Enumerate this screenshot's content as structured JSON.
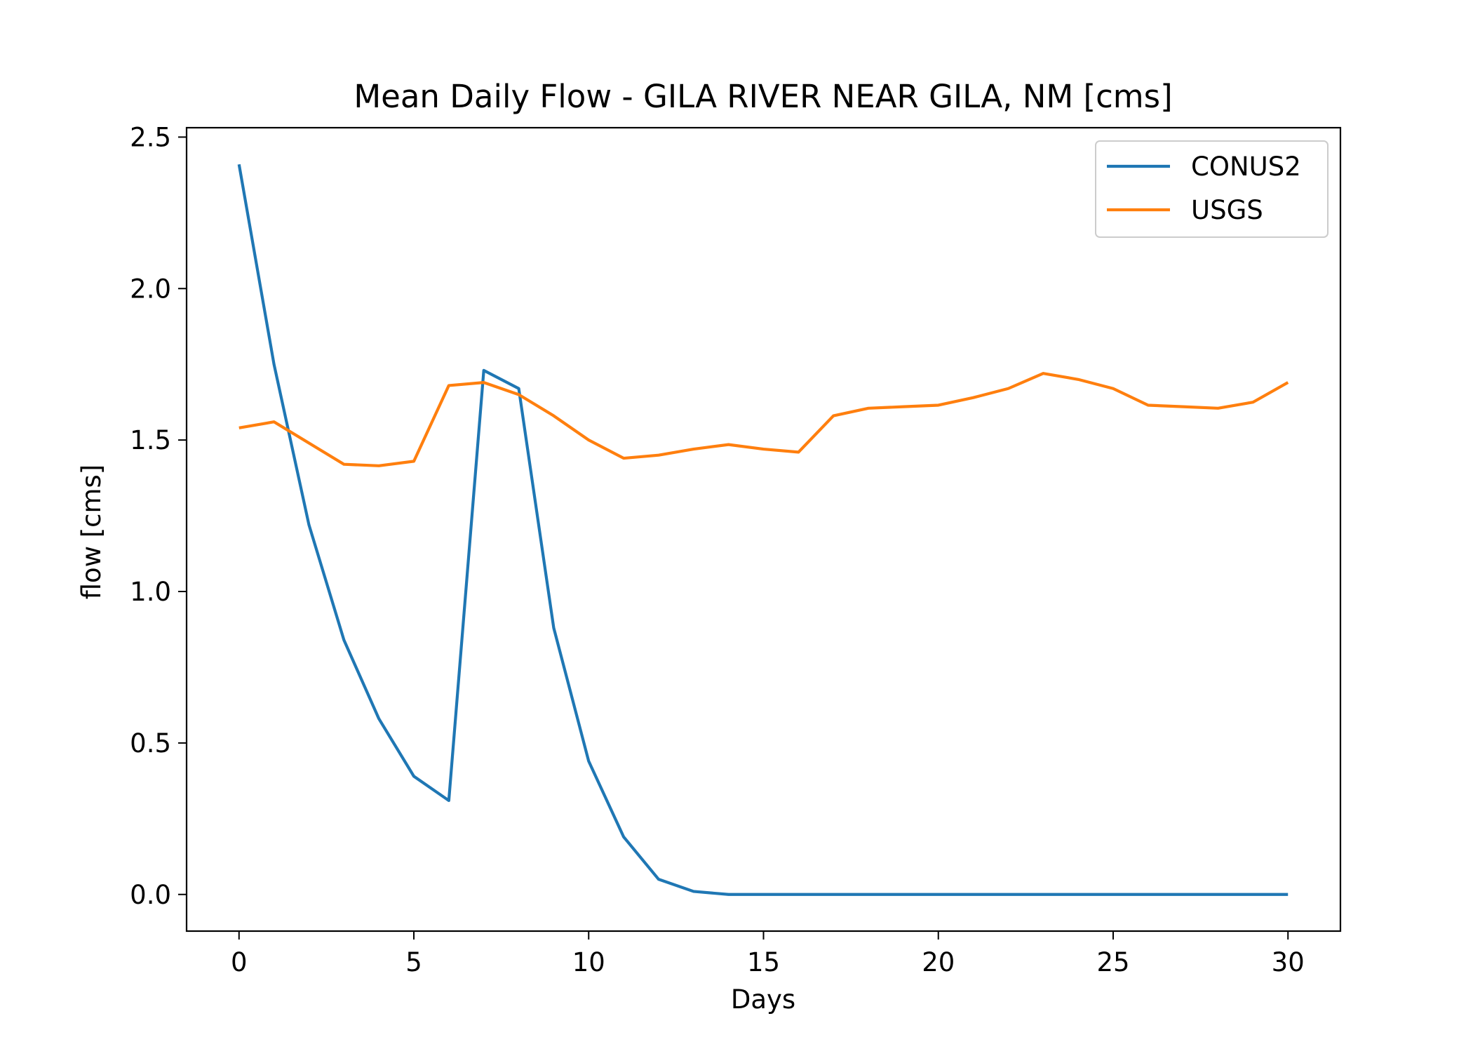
{
  "chart_data": {
    "type": "line",
    "title": "Mean Daily Flow - GILA RIVER NEAR GILA, NM [cms]",
    "xlabel": "Days",
    "ylabel": "flow [cms]",
    "xlim": [
      -1.5,
      31.5
    ],
    "ylim": [
      -0.121,
      2.531
    ],
    "xticks": [
      0,
      5,
      10,
      15,
      20,
      25,
      30
    ],
    "xtick_labels": [
      "0",
      "5",
      "10",
      "15",
      "20",
      "25",
      "30"
    ],
    "yticks": [
      0.0,
      0.5,
      1.0,
      1.5,
      2.0,
      2.5
    ],
    "ytick_labels": [
      "0.0",
      "0.5",
      "1.0",
      "1.5",
      "2.0",
      "2.5"
    ],
    "grid": false,
    "legend_position": "upper right",
    "x": [
      0,
      1,
      2,
      3,
      4,
      5,
      6,
      7,
      8,
      9,
      10,
      11,
      12,
      13,
      14,
      15,
      16,
      17,
      18,
      19,
      20,
      21,
      22,
      23,
      24,
      25,
      26,
      27,
      28,
      29,
      30
    ],
    "series": [
      {
        "name": "CONUS2",
        "color": "#1f77b4",
        "values": [
          2.41,
          1.75,
          1.22,
          0.84,
          0.58,
          0.39,
          0.31,
          1.73,
          1.67,
          0.88,
          0.44,
          0.19,
          0.05,
          0.01,
          0.0,
          0.0,
          0.0,
          0.0,
          0.0,
          0.0,
          0.0,
          0.0,
          0.0,
          0.0,
          0.0,
          0.0,
          0.0,
          0.0,
          0.0,
          0.0,
          0.0
        ]
      },
      {
        "name": "USGS",
        "color": "#ff7f0e",
        "values": [
          1.54,
          1.56,
          1.49,
          1.42,
          1.415,
          1.43,
          1.68,
          1.69,
          1.65,
          1.58,
          1.5,
          1.44,
          1.45,
          1.47,
          1.485,
          1.47,
          1.46,
          1.58,
          1.605,
          1.61,
          1.615,
          1.64,
          1.67,
          1.72,
          1.7,
          1.67,
          1.615,
          1.61,
          1.605,
          1.625,
          1.69
        ]
      }
    ]
  }
}
